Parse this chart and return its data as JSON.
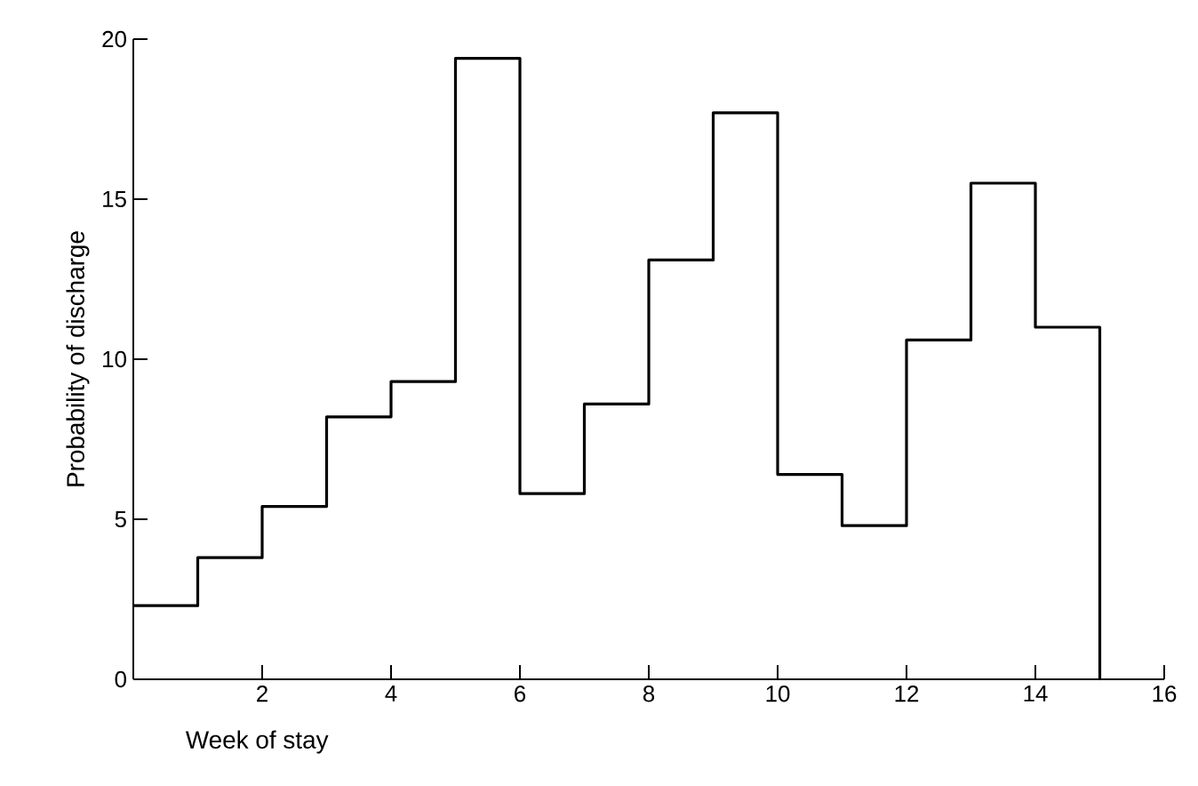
{
  "chart_data": {
    "type": "histogram",
    "xlabel": "Week of stay",
    "ylabel": "Probability of discharge",
    "bins": [
      0,
      1,
      2,
      3,
      4,
      5,
      6,
      7,
      8,
      9,
      10,
      11,
      12,
      13,
      14,
      15
    ],
    "values": [
      2.3,
      3.8,
      5.4,
      8.2,
      9.3,
      19.4,
      5.8,
      8.6,
      13.1,
      17.7,
      6.4,
      4.8,
      10.6,
      15.5,
      11.0
    ],
    "color": "#000000",
    "xlim": [
      0,
      16
    ],
    "ylim": [
      0,
      20
    ],
    "xticks": [
      2,
      4,
      6,
      8,
      10,
      12,
      14,
      16
    ],
    "yticks": [
      0,
      5,
      10,
      15,
      20
    ],
    "grid": false
  }
}
